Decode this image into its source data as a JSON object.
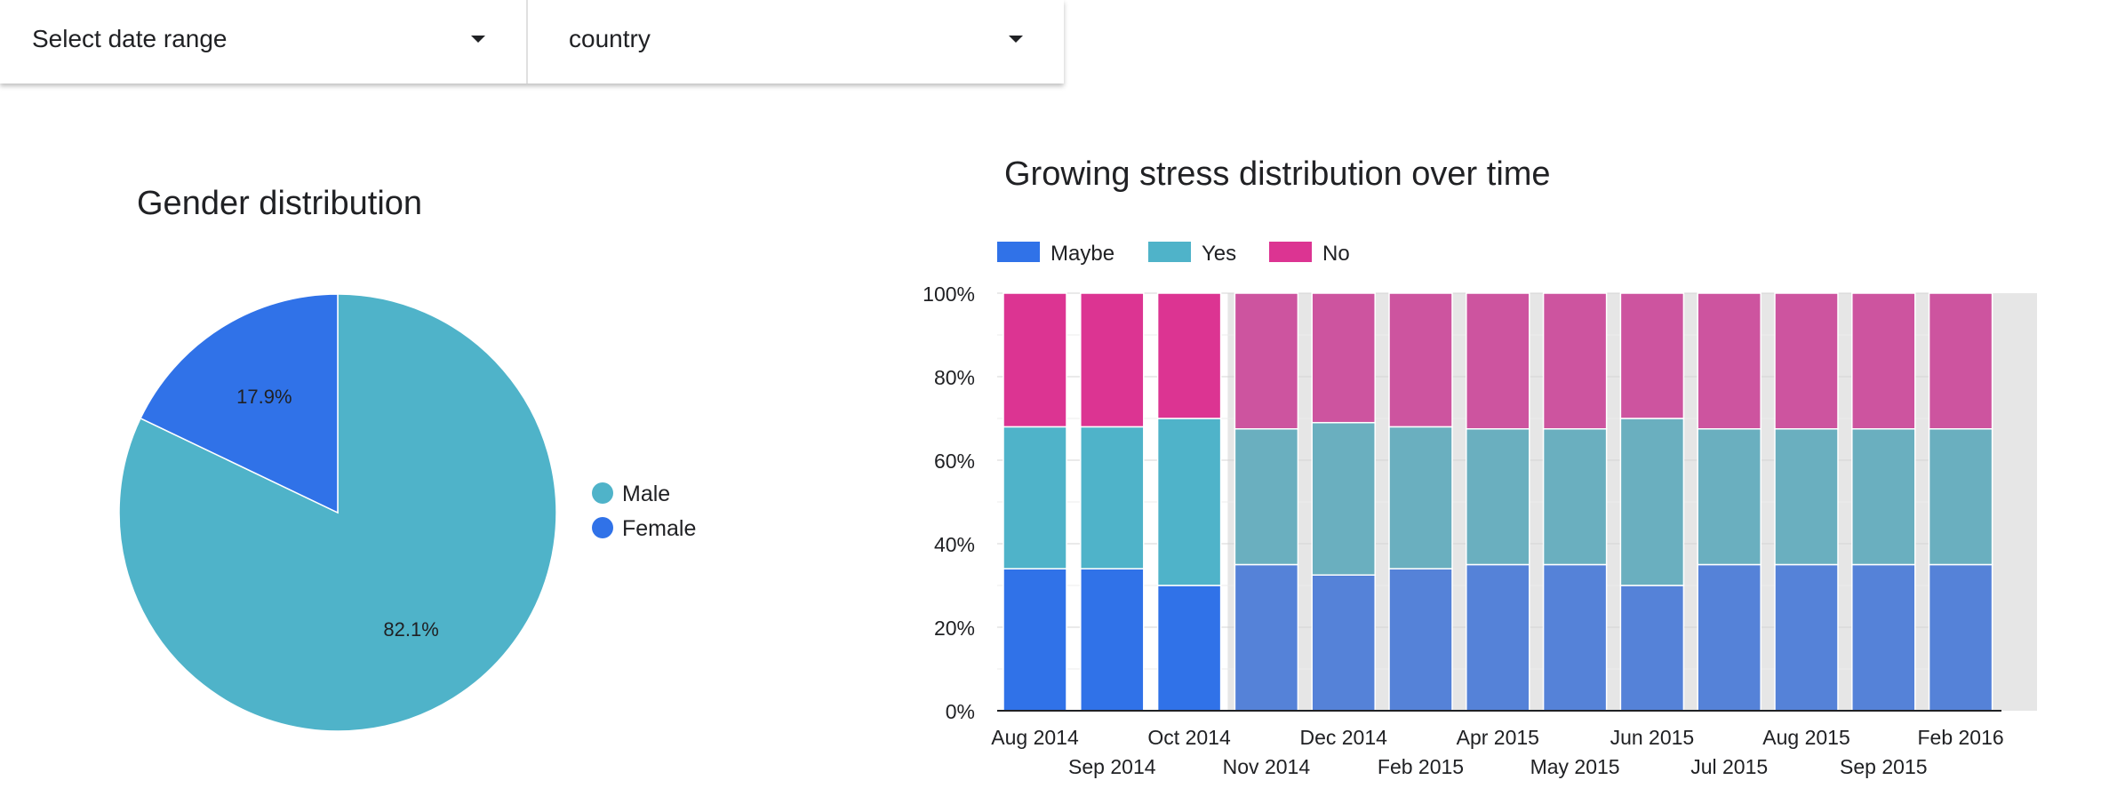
{
  "filters": {
    "date_range": {
      "label": "Select date range",
      "icon": "caret-down-icon"
    },
    "country": {
      "label": "country",
      "icon": "caret-down-icon"
    }
  },
  "chart_data": [
    {
      "type": "pie",
      "title": "Gender distribution",
      "slices": [
        {
          "label": "Male",
          "value": 82.1,
          "display": "82.1%",
          "color": "#4fb3c9"
        },
        {
          "label": "Female",
          "value": 17.9,
          "display": "17.9%",
          "color": "#3072e8"
        }
      ],
      "legend": {
        "position": "right",
        "entries": [
          "Male",
          "Female"
        ]
      }
    },
    {
      "type": "bar",
      "stacked": "percent",
      "title": "Growing stress distribution over time",
      "categories": [
        "Aug 2014",
        "Sep 2014",
        "Oct 2014",
        "Nov 2014",
        "Dec 2014",
        "Feb 2015",
        "Apr 2015",
        "May 2015",
        "Jun 2015",
        "Jul 2015",
        "Aug 2015",
        "Sep 2015",
        "Feb 2016"
      ],
      "series": [
        {
          "name": "Maybe",
          "color": "#3072e8",
          "dim_color": "#5582d8",
          "values": [
            34,
            34,
            30,
            35,
            32.5,
            34,
            35,
            35,
            30,
            35,
            35,
            35,
            35
          ]
        },
        {
          "name": "Yes",
          "color": "#4fb3c9",
          "dim_color": "#6aafbf",
          "values": [
            34,
            34,
            40,
            32.5,
            36.5,
            34,
            32.5,
            32.5,
            40,
            32.5,
            32.5,
            32.5,
            32.5
          ]
        },
        {
          "name": "No",
          "color": "#dc3492",
          "dim_color": "#cd549f",
          "values": [
            32,
            32,
            30,
            32.5,
            31,
            32,
            32.5,
            32.5,
            30,
            32.5,
            32.5,
            32.5,
            32.5
          ]
        }
      ],
      "highlighted_count": 3,
      "y_ticks": [
        "0%",
        "20%",
        "40%",
        "60%",
        "80%",
        "100%"
      ],
      "ylim": [
        0,
        100
      ],
      "legend": {
        "position": "top-left",
        "entries": [
          "Maybe",
          "Yes",
          "No"
        ]
      }
    }
  ]
}
